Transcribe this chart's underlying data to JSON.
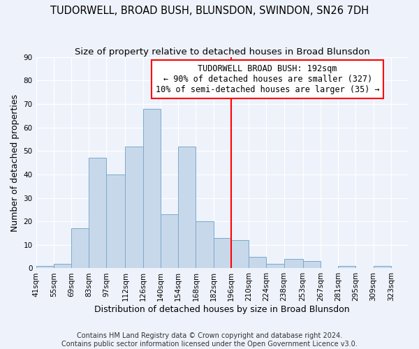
{
  "title": "TUDORWELL, BROAD BUSH, BLUNSDON, SWINDON, SN26 7DH",
  "subtitle": "Size of property relative to detached houses in Broad Blunsdon",
  "xlabel": "Distribution of detached houses by size in Broad Blunsdon",
  "ylabel": "Number of detached properties",
  "bin_labels": [
    "41sqm",
    "55sqm",
    "69sqm",
    "83sqm",
    "97sqm",
    "112sqm",
    "126sqm",
    "140sqm",
    "154sqm",
    "168sqm",
    "182sqm",
    "196sqm",
    "210sqm",
    "224sqm",
    "238sqm",
    "253sqm",
    "267sqm",
    "281sqm",
    "295sqm",
    "309sqm",
    "323sqm"
  ],
  "bar_values": [
    1,
    2,
    17,
    47,
    40,
    52,
    68,
    23,
    52,
    20,
    13,
    12,
    5,
    2,
    4,
    3,
    0,
    1,
    0,
    1,
    0
  ],
  "bar_color": "#c8d8eb",
  "bar_edge_color": "#7aaac8",
  "vline_x_index": 11,
  "vline_color": "red",
  "ylim": [
    0,
    90
  ],
  "yticks": [
    0,
    10,
    20,
    30,
    40,
    50,
    60,
    70,
    80,
    90
  ],
  "annotation_title": "TUDORWELL BROAD BUSH: 192sqm",
  "annotation_line1": "← 90% of detached houses are smaller (327)",
  "annotation_line2": "10% of semi-detached houses are larger (35) →",
  "bin_edges": [
    41,
    55,
    69,
    83,
    97,
    112,
    126,
    140,
    154,
    168,
    182,
    196,
    210,
    224,
    238,
    253,
    267,
    281,
    295,
    309,
    323,
    337
  ],
  "footnote1": "Contains HM Land Registry data © Crown copyright and database right 2024.",
  "footnote2": "Contains public sector information licensed under the Open Government Licence v3.0.",
  "bg_color": "#eef2fb",
  "title_fontsize": 10.5,
  "subtitle_fontsize": 9.5,
  "axis_label_fontsize": 9,
  "tick_fontsize": 7.5,
  "footnote_fontsize": 7,
  "annot_fontsize": 8.5
}
